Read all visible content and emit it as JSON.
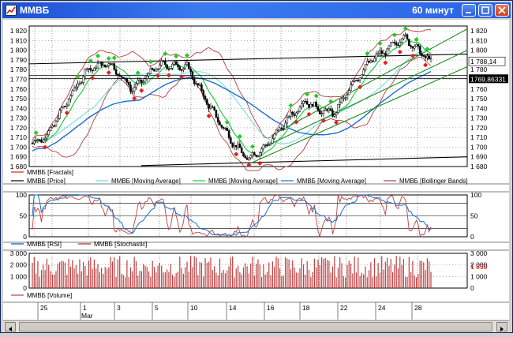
{
  "window": {
    "title": "ММВБ",
    "timeframe": "60 минут"
  },
  "colors": {
    "price": "#000000",
    "fractal_up": "#22cc22",
    "fractal_down": "#e02020",
    "ma1": "#66dddd",
    "ma2": "#22cc44",
    "ma3": "#1a6fd0",
    "bollinger": "#b04040",
    "trend_green": "#1a8a1a",
    "rsi": "#1a6fd0",
    "stochastic": "#c04040",
    "volume": "#c04040"
  },
  "price_panel": {
    "y_ticks": [
      "1 820",
      "1 810",
      "1 800",
      "1 790",
      "1 780",
      "1 770",
      "1 760",
      "1 750",
      "1 740",
      "1 730",
      "1 720",
      "1 710",
      "1 700",
      "1 690",
      "1 680"
    ],
    "y_ticks_right": [
      "1 820",
      "1 810",
      "1 800",
      "1 790",
      "1 780",
      "1 770",
      "1 760",
      "1 750",
      "1 740",
      "1 730",
      "1 720",
      "1 710",
      "1 700",
      "1 690",
      "1 680"
    ],
    "current_price_label": "1 788,14",
    "cursor_label": "1769,86331",
    "legend": [
      {
        "name": "ММВБ [Fractals]"
      },
      {
        "name": "ММВБ [Price]"
      },
      {
        "name": "ММВБ [Moving Average]"
      },
      {
        "name": "ММВБ [Moving Average]"
      },
      {
        "name": "ММВБ [Moving Average]"
      },
      {
        "name": "ММВБ [Bollinger Bands]"
      }
    ]
  },
  "osc_panel": {
    "y_ticks": [
      "100",
      "50",
      "0"
    ],
    "y_ticks_right": [
      "100",
      "50",
      "0"
    ],
    "legend": [
      {
        "name": "ММВБ [RSI]"
      },
      {
        "name": "ММВБ [Stochastic]"
      }
    ]
  },
  "volume_panel": {
    "y_ticks": [
      "3 000",
      "2 000",
      "1 000",
      "0"
    ],
    "y_ticks_right": [
      "3 000",
      "2 000",
      "1 000",
      "0"
    ],
    "current_volume_label": "1 850",
    "legend": [
      {
        "name": "ММВБ [Volume]"
      }
    ]
  },
  "time_axis": {
    "day_labels": [
      "25",
      "1",
      "3",
      "5",
      "10",
      "14",
      "16",
      "18",
      "22",
      "24",
      "28"
    ],
    "month_label": "Mar"
  },
  "chart_data": {
    "type": "line",
    "x": [
      "25",
      "1",
      "3",
      "5",
      "10",
      "14",
      "16",
      "18",
      "22",
      "24",
      "28"
    ],
    "series": [
      {
        "name": "ММВБ [Price]",
        "values": [
          1705,
          1782,
          1783,
          1770,
          1778,
          1686,
          1700,
          1740,
          1738,
          1795,
          1812
        ]
      }
    ],
    "last_value": 1788.14,
    "ylim": [
      1680,
      1825
    ],
    "oscillators": {
      "ylim": [
        0,
        100
      ],
      "levels": [
        20,
        50,
        80
      ]
    },
    "volume": {
      "ylim": [
        0,
        3000
      ],
      "last_value": 1850
    },
    "grid": true,
    "legend_placement": "below each panel"
  }
}
